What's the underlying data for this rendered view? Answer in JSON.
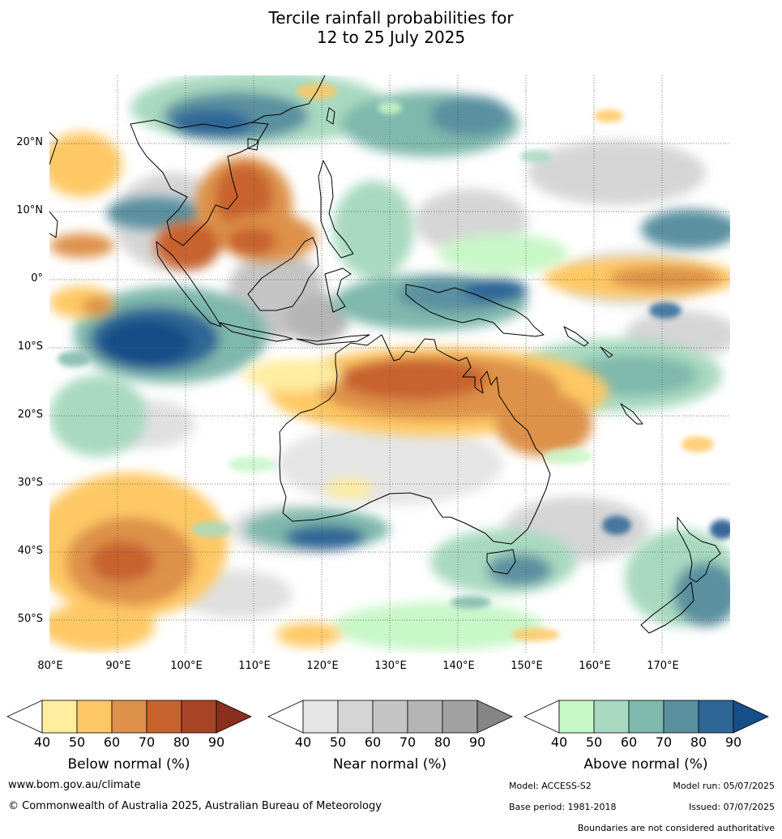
{
  "title": {
    "line1": "Tercile rainfall probabilities for",
    "line2": "12 to 25 July 2025"
  },
  "map": {
    "lat_labels": [
      "20°N",
      "10°N",
      "0°",
      "10°S",
      "20°S",
      "30°S",
      "40°S",
      "50°S"
    ],
    "lon_labels": [
      "80°E",
      "90°E",
      "100°E",
      "110°E",
      "120°E",
      "130°E",
      "140°E",
      "150°E",
      "160°E",
      "170°E"
    ],
    "colors": {
      "below": [
        "#ffeda0",
        "#fec865",
        "#dd914a",
        "#c8622f",
        "#a84426",
        "#8a2e1d"
      ],
      "near": [
        "#e5e5e5",
        "#d5d5d5",
        "#c5c5c5",
        "#b5b5b5",
        "#a2a2a2",
        "#868686"
      ],
      "above": [
        "#c8f7c8",
        "#a8d9c0",
        "#7fb8ac",
        "#5a90a0",
        "#2e6696",
        "#164e87"
      ]
    }
  },
  "legends": [
    {
      "caption": "Below normal (%)",
      "ticks": [
        "40",
        "50",
        "60",
        "70",
        "80",
        "90"
      ]
    },
    {
      "caption": "Near normal (%)",
      "ticks": [
        "40",
        "50",
        "60",
        "70",
        "80",
        "90"
      ]
    },
    {
      "caption": "Above normal (%)",
      "ticks": [
        "40",
        "50",
        "60",
        "70",
        "80",
        "90"
      ]
    }
  ],
  "footer": {
    "url": "www.bom.gov.au/climate",
    "copyright": "© Commonwealth of Australia 2025, Australian Bureau of Meteorology",
    "model": "Model: ACCESS-S2",
    "model_run": "Model run: 05/07/2025",
    "base_period": "Base period: 1981-2018",
    "issued": "Issued: 07/07/2025",
    "disclaimer": "Boundaries are not considered authoritative"
  }
}
